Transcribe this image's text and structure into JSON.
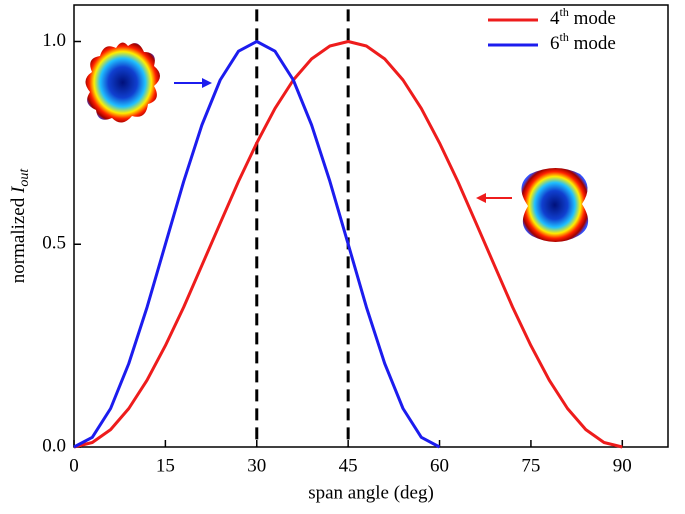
{
  "chart_data": {
    "type": "line",
    "xlabel": "span angle (deg)",
    "ylabel": "normalized Iout",
    "x": [
      0,
      3,
      6,
      9,
      12,
      15,
      18,
      21,
      24,
      27,
      30,
      33,
      36,
      39,
      42,
      45,
      48,
      51,
      54,
      57,
      60,
      63,
      66,
      69,
      72,
      75,
      78,
      81,
      84,
      87,
      90
    ],
    "series": [
      {
        "name": "4th mode",
        "color": "#ee1c1c",
        "values": [
          0,
          0.011,
          0.043,
          0.095,
          0.165,
          0.25,
          0.345,
          0.448,
          0.552,
          0.655,
          0.75,
          0.835,
          0.905,
          0.957,
          0.989,
          1,
          0.989,
          0.957,
          0.905,
          0.835,
          0.75,
          0.655,
          0.552,
          0.448,
          0.345,
          0.25,
          0.165,
          0.095,
          0.043,
          0.011,
          0
        ]
      },
      {
        "name": "6th mode",
        "color": "#1c1cee",
        "values": [
          0,
          0.024,
          0.095,
          0.206,
          0.345,
          0.5,
          0.655,
          0.794,
          0.905,
          0.976,
          1,
          0.976,
          0.905,
          0.794,
          0.655,
          0.5,
          0.345,
          0.206,
          0.095,
          0.024,
          0,
          null,
          null,
          null,
          null,
          null,
          null,
          null,
          null,
          null,
          null
        ]
      }
    ],
    "vlines": [
      30,
      45
    ],
    "xlim": [
      0,
      97.5
    ],
    "xticks": [
      0,
      15,
      30,
      45,
      60,
      75,
      90
    ],
    "ylim": [
      0,
      1.09
    ],
    "yticks": [
      {
        "value": 0,
        "label": "0.0"
      },
      {
        "value": 0.5,
        "label": "0.5"
      },
      {
        "value": 1,
        "label": "1.0"
      }
    ],
    "legend": "upper right"
  }
}
